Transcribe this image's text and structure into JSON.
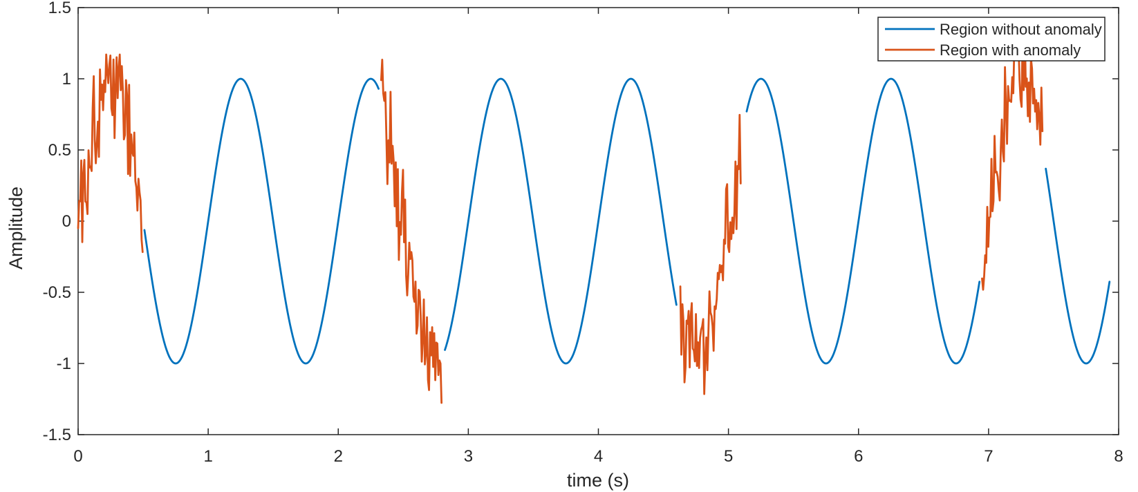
{
  "chart_data": {
    "type": "line",
    "title": "",
    "xlabel": "time (s)",
    "ylabel": "Amplitude",
    "xlim": [
      0,
      8
    ],
    "ylim": [
      -1.5,
      1.5
    ],
    "xticks": [
      0,
      1,
      2,
      3,
      4,
      5,
      6,
      7,
      8
    ],
    "xtick_labels": [
      "0",
      "1",
      "2",
      "3",
      "4",
      "5",
      "6",
      "7",
      "8"
    ],
    "yticks": [
      -1.5,
      -1,
      -0.5,
      0,
      0.5,
      1,
      1.5
    ],
    "ytick_labels": [
      "-1.5",
      "-1",
      "-0.5",
      "0",
      "0.5",
      "1",
      "1.5"
    ],
    "grid": false,
    "box": true,
    "colors": {
      "axis": "#262626",
      "background": "#FFFFFF"
    },
    "legend": {
      "position": "top-right",
      "border": true,
      "entries": [
        {
          "label": "Region without anomaly",
          "color": "#0072BD"
        },
        {
          "label": "Region with anomaly",
          "color": "#D95319"
        }
      ]
    },
    "signal": {
      "base": "sin(2*pi*f*t)",
      "frequency_hz": 1,
      "amplitude": 1,
      "sample_step_s": 0.008,
      "noise_amplitude": 0.5
    },
    "series": [
      {
        "name": "Region without anomaly",
        "color": "#0072BD",
        "style": "solid",
        "line_width": 2.8,
        "segments_t": [
          [
            0.51,
            2.31
          ],
          [
            2.82,
            4.6
          ],
          [
            5.14,
            6.93
          ],
          [
            7.44,
            7.93
          ]
        ]
      },
      {
        "name": "Region with anomaly",
        "color": "#D95319",
        "style": "solid",
        "line_width": 2.8,
        "segments_t": [
          [
            0.0,
            0.5
          ],
          [
            2.33,
            2.8
          ],
          [
            4.63,
            5.1
          ],
          [
            6.95,
            7.42
          ]
        ],
        "observed_peaks": {
          "max": 1.45,
          "min": -1.45
        }
      }
    ]
  }
}
